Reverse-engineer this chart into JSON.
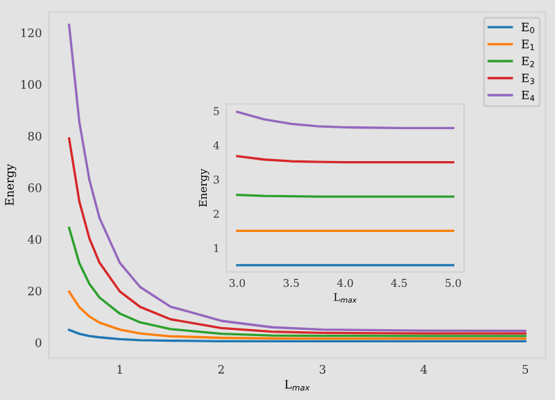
{
  "chart_data": [
    {
      "type": "line",
      "xlabel": "L$_{max}$",
      "ylabel": "Energy",
      "x": [
        0.5,
        0.6,
        0.7,
        0.8,
        1.0,
        1.2,
        1.5,
        2.0,
        2.5,
        3.0,
        4.0,
        5.0
      ],
      "xlim": [
        0.3,
        5.2
      ],
      "xticks": [
        1,
        2,
        3,
        4,
        5
      ],
      "ylim": [
        -6,
        128
      ],
      "yticks": [
        0,
        20,
        40,
        60,
        80,
        100,
        120
      ],
      "legend": "top right",
      "grid": false,
      "series": [
        {
          "name": "E$_{0}$",
          "color": "#1f77b4",
          "values": [
            4.9,
            3.4,
            2.5,
            2.0,
            1.3,
            0.9,
            0.7,
            0.5,
            0.5,
            0.5,
            0.5,
            0.5
          ]
        },
        {
          "name": "E$_{1}$",
          "color": "#ff7f0e",
          "values": [
            19.7,
            13.7,
            10.1,
            7.7,
            5.0,
            3.5,
            2.4,
            1.8,
            1.6,
            1.5,
            1.5,
            1.5
          ]
        },
        {
          "name": "E$_{2}$",
          "color": "#2ca02c",
          "values": [
            44.4,
            30.8,
            22.7,
            17.4,
            11.2,
            7.8,
            5.2,
            3.4,
            2.7,
            2.6,
            2.5,
            2.5
          ]
        },
        {
          "name": "E$_{3}$",
          "color": "#d62728",
          "values": [
            79,
            54.8,
            40.3,
            30.9,
            19.8,
            13.8,
            9.0,
            5.6,
            4.2,
            3.7,
            3.5,
            3.5
          ]
        },
        {
          "name": "E$_{4}$",
          "color": "#9467bd",
          "values": [
            123,
            85.6,
            63,
            48.2,
            30.9,
            21.5,
            13.9,
            8.4,
            5.9,
            5.0,
            4.6,
            4.5
          ]
        }
      ]
    },
    {
      "type": "line",
      "xlabel": "L$_{max}$",
      "ylabel": "Energy",
      "x": [
        3.0,
        3.25,
        3.5,
        3.75,
        4.0,
        4.5,
        5.0
      ],
      "xlim": [
        2.9,
        5.1
      ],
      "xticks": [
        {
          "value": 3.0,
          "label": "3.0"
        },
        3.5,
        {
          "value": 4.0,
          "label": "4.0"
        },
        4.5,
        {
          "value": 5.0,
          "label": "5.0"
        }
      ],
      "ylim": [
        0.3,
        5.2
      ],
      "yticks": [
        1,
        2,
        3,
        4,
        5
      ],
      "grid": false,
      "series": [
        {
          "color": "#1f77b4",
          "values": [
            0.5,
            0.5,
            0.5,
            0.5,
            0.5,
            0.5,
            0.5
          ]
        },
        {
          "color": "#ff7f0e",
          "values": [
            1.5,
            1.5,
            1.5,
            1.5,
            1.5,
            1.5,
            1.5
          ]
        },
        {
          "color": "#2ca02c",
          "values": [
            2.55,
            2.52,
            2.51,
            2.5,
            2.5,
            2.5,
            2.5
          ]
        },
        {
          "color": "#d62728",
          "values": [
            3.68,
            3.58,
            3.53,
            3.51,
            3.5,
            3.5,
            3.5
          ]
        },
        {
          "color": "#9467bd",
          "values": [
            4.97,
            4.75,
            4.62,
            4.55,
            4.52,
            4.5,
            4.5
          ]
        }
      ]
    }
  ]
}
